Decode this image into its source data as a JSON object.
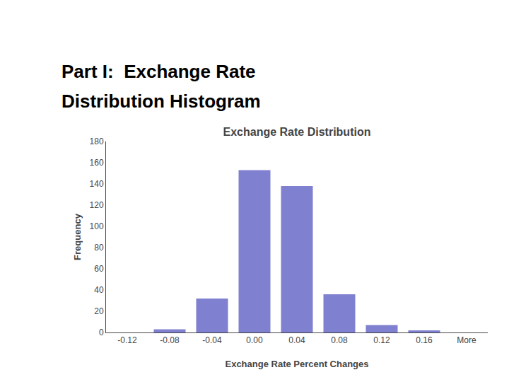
{
  "chart_data": {
    "type": "bar",
    "title": "Exchange Rate Distribution",
    "annotations": [
      "Part I:  Exchange Rate",
      "Distribution Histogram"
    ],
    "xlabel": "Exchange Rate Percent Changes",
    "ylabel": "Frequency",
    "categories": [
      "-0.12",
      "-0.08",
      "-0.04",
      "0.00",
      "0.04",
      "0.08",
      "0.12",
      "0.16",
      "More"
    ],
    "values": [
      0,
      3,
      32,
      153,
      138,
      36,
      7,
      2,
      0
    ],
    "color": "#8080d0",
    "ylim": [
      0,
      180
    ],
    "yticks": [
      0,
      20,
      40,
      60,
      80,
      100,
      120,
      140,
      160,
      180
    ],
    "grid": false
  }
}
